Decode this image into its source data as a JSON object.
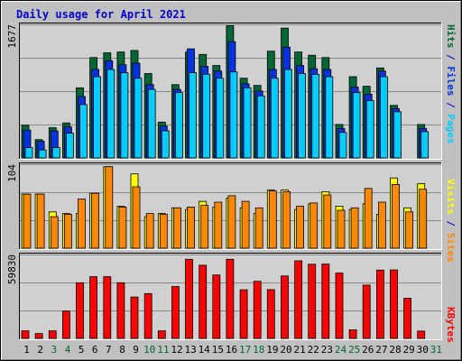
{
  "colors": {
    "background": "#C0C0C0",
    "panel": "#D0D0D0",
    "title": "#0000CC",
    "hits": "#006633",
    "files": "#0033DD",
    "pages": "#00CCFF",
    "visits": "#FFFF00",
    "sites": "#FF8800",
    "kbytes": "#FF0000",
    "weekday": "#000000",
    "weekend": "#006633",
    "separator": "#0000CC"
  },
  "chart_data": {
    "type": "bar",
    "title": "Daily usage for April 2021",
    "categories": [
      "1",
      "2",
      "3",
      "4",
      "5",
      "6",
      "7",
      "8",
      "9",
      "10",
      "11",
      "12",
      "13",
      "14",
      "15",
      "16",
      "17",
      "18",
      "19",
      "20",
      "21",
      "22",
      "23",
      "24",
      "25",
      "26",
      "27",
      "28",
      "29",
      "30",
      "31"
    ],
    "weekend_days": [
      "3",
      "4",
      "10",
      "11",
      "17",
      "18",
      "24",
      "25",
      "31"
    ],
    "legend": [
      "Pages",
      "Files",
      "Hits",
      "Sites",
      "Visits",
      "KBytes"
    ],
    "panels": [
      {
        "id": "requests",
        "ymax_label": "1677",
        "ylim": [
          0,
          1677
        ],
        "series": [
          {
            "name": "Hits",
            "values": [
              410,
              230,
              380,
              440,
              880,
              1260,
              1320,
              1330,
              1350,
              1060,
              450,
              920,
              1330,
              1300,
              1160,
              1660,
              1000,
              910,
              1340,
              1630,
              1330,
              1290,
              1260,
              420,
              1020,
              900,
              1130,
              660,
              0,
              420,
              0
            ]
          },
          {
            "name": "Files",
            "values": [
              350,
              210,
              340,
              390,
              770,
              1110,
              1220,
              1170,
              1190,
              920,
              400,
              860,
              1370,
              1150,
              1090,
              1460,
              930,
              840,
              1110,
              1390,
              1160,
              1120,
              1110,
              370,
              890,
              800,
              1090,
              620,
              0,
              370,
              0
            ]
          },
          {
            "name": "Pages",
            "values": [
              130,
              100,
              130,
              310,
              670,
              1020,
              1110,
              1070,
              1000,
              860,
              340,
              820,
              1070,
              1050,
              1000,
              1080,
              880,
              780,
              1000,
              1110,
              1060,
              1050,
              1020,
              320,
              820,
              720,
              1020,
              580,
              0,
              330,
              0
            ]
          }
        ]
      },
      {
        "id": "visitors",
        "ymax_label": "104",
        "ylim": [
          0,
          104
        ],
        "series": [
          {
            "name": "Visits",
            "values": [
              67,
              67,
              45,
              43,
              43,
              68,
              101,
              52,
              92,
              39,
              43,
              50,
              48,
              58,
              51,
              62,
              50,
              43,
              72,
              72,
              48,
              55,
              70,
              52,
              48,
              55,
              42,
              87,
              50,
              80,
              0
            ]
          },
          {
            "name": "Sites",
            "values": [
              67,
              67,
              39,
              42,
              61,
              68,
              101,
              51,
              76,
              43,
              42,
              50,
              51,
              53,
              57,
              65,
              58,
              50,
              71,
              70,
              52,
              56,
              66,
              47,
              50,
              74,
              57,
              79,
              45,
              73,
              0
            ]
          }
        ]
      },
      {
        "id": "volume",
        "ymax_label": "59830",
        "ylim": [
          0,
          59830
        ],
        "series": [
          {
            "name": "KBytes",
            "values": [
              5400,
              3500,
              5400,
              19500,
              39700,
              44000,
              44000,
              39700,
              29500,
              32000,
              5400,
              37000,
              56400,
              52200,
              45200,
              56400,
              34700,
              40700,
              34800,
              44500,
              55300,
              52900,
              53000,
              46600,
              6200,
              38000,
              48700,
              48800,
              28700,
              5200,
              0
            ]
          }
        ]
      }
    ]
  }
}
